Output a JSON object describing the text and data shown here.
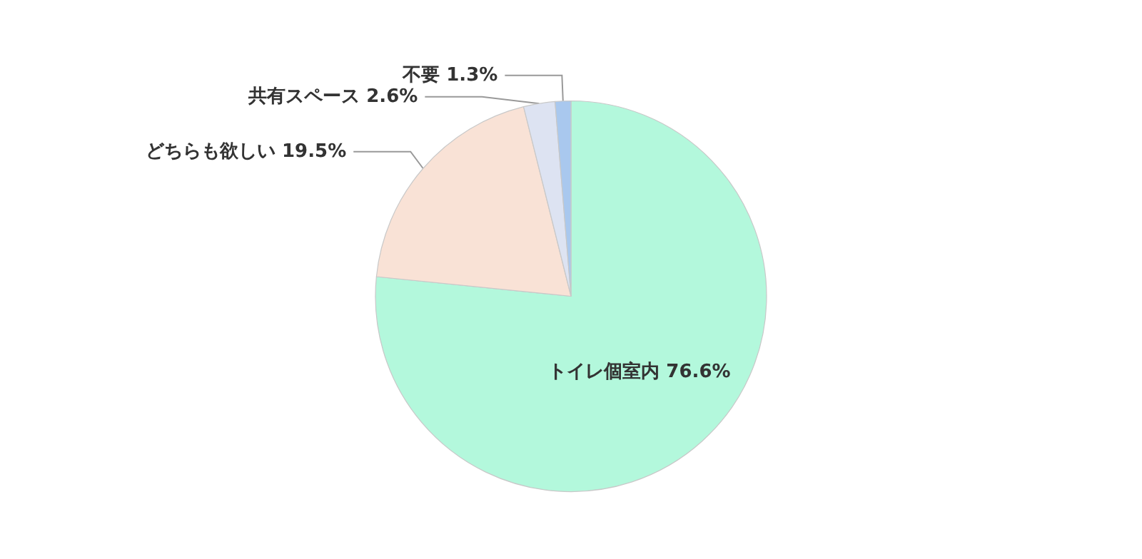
{
  "chart_data": {
    "type": "pie",
    "categories": [
      "トイレ個室内",
      "どちらも欲しい",
      "共有スペース",
      "不要"
    ],
    "values": [
      76.6,
      19.5,
      2.6,
      1.3
    ],
    "value_labels": [
      "76.6%",
      "19.5%",
      "2.6%",
      "1.3%"
    ],
    "colors": [
      "#b3f8dc",
      "#f9e2d6",
      "#dde3f2",
      "#a9c8ee"
    ]
  }
}
